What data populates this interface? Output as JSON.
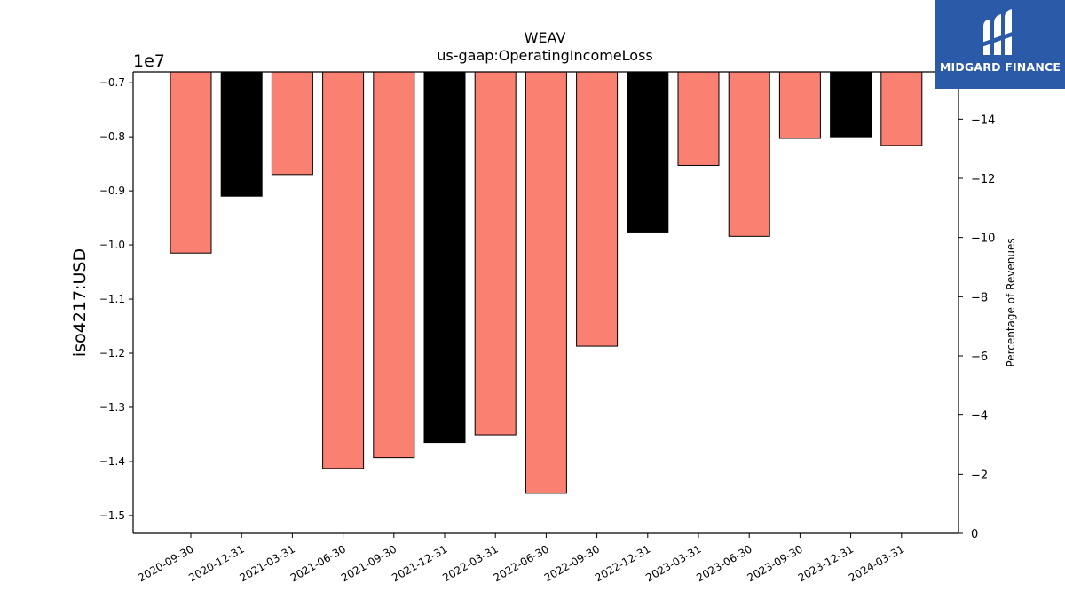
{
  "chart_data": {
    "type": "bar",
    "title": "WEAV",
    "subtitle": "us-gaap:OperatingIncomeLoss",
    "ylabel": "iso4217:USD",
    "y_offset_label": "1e7",
    "y2label": "Percentage of Revenues",
    "categories": [
      "2020-09-30",
      "2020-12-31",
      "2021-03-31",
      "2021-06-30",
      "2021-09-30",
      "2021-12-31",
      "2022-03-31",
      "2022-06-30",
      "2022-09-30",
      "2022-12-31",
      "2023-03-31",
      "2023-06-30",
      "2023-09-30",
      "2023-12-31",
      "2024-03-31"
    ],
    "values": [
      -10150000,
      -9100000,
      -8700000,
      -14130000,
      -13930000,
      -13650000,
      -13510000,
      -14590000,
      -11870000,
      -9760000,
      -8530000,
      -9840000,
      -8030000,
      -8000000,
      -8160000
    ],
    "bar_colors": [
      "#fa8072",
      "#000000",
      "#fa8072",
      "#fa8072",
      "#fa8072",
      "#000000",
      "#fa8072",
      "#fa8072",
      "#fa8072",
      "#000000",
      "#fa8072",
      "#fa8072",
      "#fa8072",
      "#000000",
      "#fa8072"
    ],
    "ylim": [
      -15330000,
      -6800000
    ],
    "yticks": [
      -7000000,
      -8000000,
      -9000000,
      -10000000,
      -11000000,
      -12000000,
      -13000000,
      -14000000,
      -15000000
    ],
    "ytick_labels": [
      "−0.7",
      "−0.8",
      "−0.9",
      "−1.0",
      "−1.1",
      "−1.2",
      "−1.3",
      "−1.4",
      "−1.5"
    ],
    "y2lim": [
      0,
      15.6
    ],
    "y2ticks": [
      0,
      2,
      4,
      6,
      8,
      10,
      12,
      14
    ],
    "y2tick_labels": [
      "0",
      "−2",
      "−4",
      "−6",
      "−8",
      "−10",
      "−12",
      "−14"
    ],
    "grid": false,
    "legend": "none"
  },
  "logo": {
    "text": "MIDGARD FINANCE",
    "icon": "midgard-logo-icon",
    "background": "#2b5aa8"
  }
}
